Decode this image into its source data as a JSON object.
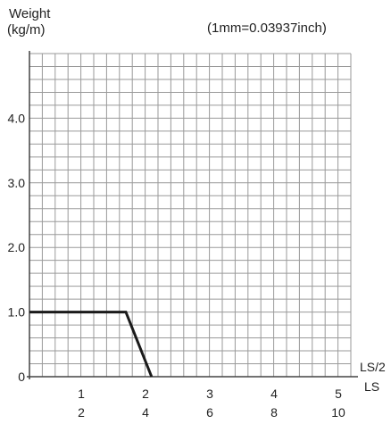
{
  "chart_data": {
    "type": "line",
    "ylabel_lines": [
      "Weight",
      "(kg/m)"
    ],
    "note": "(1mm=0.03937inch)",
    "x_unit_labels": [
      "LS/2",
      "LS"
    ],
    "xlim": [
      0,
      5
    ],
    "ylim": [
      0,
      5
    ],
    "x_ticks_top": [
      "1",
      "2",
      "3",
      "4",
      "5"
    ],
    "x_ticks_bottom": [
      "2",
      "4",
      "6",
      "8",
      "10"
    ],
    "y_ticks": [
      "0",
      "1.0",
      "2.0",
      "3.0",
      "4.0"
    ],
    "grid": true,
    "series": [
      {
        "x": [
          0,
          1.5,
          1.9
        ],
        "y": [
          1.0,
          1.0,
          0
        ]
      }
    ]
  }
}
